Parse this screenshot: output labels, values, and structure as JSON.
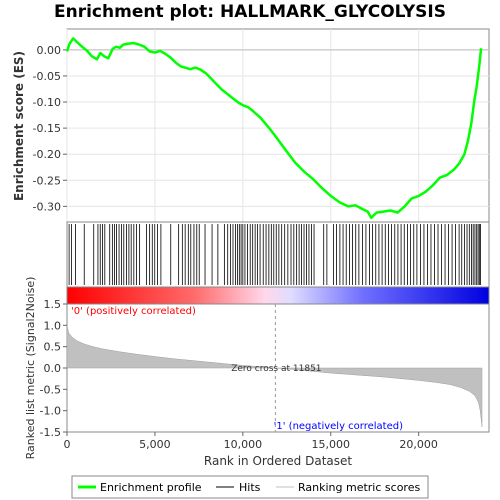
{
  "chart_data": {
    "type": "line",
    "title": "Enrichment plot: HALLMARK_GLYCOLYSIS",
    "xlabel": "Rank in Ordered Dataset",
    "xlim": [
      0,
      24000
    ],
    "x_ticks": [
      0,
      5000,
      10000,
      15000,
      20000
    ],
    "x_tick_labels": [
      "0",
      "5,000",
      "10,000",
      "15,000",
      "20,000"
    ],
    "es_panel": {
      "ylabel": "Enrichment score (ES)",
      "ylim": [
        -0.33,
        0.04
      ],
      "y_ticks": [
        0.0,
        -0.05,
        -0.1,
        -0.15,
        -0.2,
        -0.25,
        -0.3
      ],
      "y_tick_labels": [
        "0.00",
        "-0.05",
        "-0.10",
        "-0.15",
        "-0.20",
        "-0.25",
        "-0.30"
      ],
      "grid": true,
      "series": [
        {
          "name": "Enrichment profile",
          "color": "#00ff00",
          "x": [
            0,
            150,
            350,
            600,
            900,
            1150,
            1400,
            1700,
            1900,
            2100,
            2350,
            2600,
            2800,
            3000,
            3200,
            3500,
            3800,
            4100,
            4400,
            4700,
            5000,
            5300,
            5600,
            5900,
            6200,
            6500,
            6800,
            7000,
            7300,
            7600,
            7900,
            8200,
            8500,
            8800,
            9100,
            9400,
            9700,
            10000,
            10300,
            10600,
            11000,
            11500,
            12000,
            12500,
            13000,
            13500,
            14000,
            14500,
            15000,
            15500,
            16000,
            16400,
            16800,
            17100,
            17300,
            17600,
            18000,
            18400,
            18800,
            19200,
            19600,
            20000,
            20400,
            20800,
            21200,
            21600,
            22000,
            22300,
            22600,
            22800,
            23000,
            23150,
            23300,
            23450,
            23550
          ],
          "y": [
            -0.003,
            0.012,
            0.022,
            0.014,
            0.005,
            -0.002,
            -0.012,
            -0.018,
            -0.006,
            -0.012,
            -0.016,
            0.002,
            0.006,
            0.004,
            0.01,
            0.012,
            0.013,
            0.01,
            0.006,
            -0.003,
            -0.005,
            -0.002,
            -0.008,
            -0.015,
            -0.025,
            -0.032,
            -0.035,
            -0.037,
            -0.034,
            -0.038,
            -0.045,
            -0.055,
            -0.066,
            -0.076,
            -0.084,
            -0.092,
            -0.1,
            -0.106,
            -0.11,
            -0.118,
            -0.13,
            -0.15,
            -0.172,
            -0.195,
            -0.217,
            -0.234,
            -0.248,
            -0.265,
            -0.28,
            -0.292,
            -0.3,
            -0.298,
            -0.305,
            -0.31,
            -0.322,
            -0.312,
            -0.31,
            -0.308,
            -0.312,
            -0.3,
            -0.285,
            -0.28,
            -0.272,
            -0.26,
            -0.245,
            -0.24,
            -0.23,
            -0.218,
            -0.2,
            -0.175,
            -0.14,
            -0.1,
            -0.07,
            -0.03,
            0.003
          ]
        }
      ]
    },
    "hits_panel": {
      "legend_label": "Hits",
      "hit_ranks": [
        120,
        260,
        480,
        980,
        1520,
        1760,
        1890,
        2020,
        2150,
        2430,
        2580,
        2700,
        2820,
        2960,
        3100,
        3230,
        3380,
        3520,
        3650,
        3800,
        3950,
        4130,
        4520,
        4700,
        4850,
        4990,
        5150,
        5340,
        5900,
        6350,
        6560,
        6720,
        6900,
        7040,
        7220,
        7380,
        7520,
        7850,
        8250,
        8580,
        8950,
        9140,
        9300,
        9440,
        9580,
        9700,
        9800,
        9900,
        10000,
        10120,
        10260,
        10420,
        10560,
        10700,
        10830,
        10980,
        11160,
        11320,
        11480,
        11620,
        11760,
        11900,
        12050,
        12210,
        12380,
        12560,
        12740,
        12900,
        13060,
        13200,
        13340,
        13480,
        13620,
        13760,
        13900,
        14050,
        14600,
        14780,
        15150,
        15330,
        15520,
        15700,
        15880,
        16060,
        16240,
        16420,
        16600,
        16800,
        17000,
        17200,
        17380,
        17560,
        17740,
        17920,
        18100,
        18280,
        18460,
        18640,
        18820,
        19000,
        19180,
        19360,
        19540,
        19720,
        19900,
        20100,
        20300,
        20500,
        20700,
        20900,
        21100,
        21300,
        21500,
        21700,
        21900,
        22100,
        22300,
        22450,
        22600,
        22750,
        22880,
        23000,
        23100,
        23200,
        23300,
        23380,
        23450,
        23520
      ]
    },
    "ranking_panel": {
      "ylabel": "Ranked list metric (Signal2Noise)",
      "legend_label": "Ranking metric scores",
      "ylim": [
        -1.5,
        1.5
      ],
      "y_ticks": [
        1.5,
        1.0,
        0.5,
        0.0,
        -0.5,
        -1.0,
        -1.5
      ],
      "y_tick_labels": [
        "1.5",
        "1.0",
        "0.5",
        "0.0",
        "-0.5",
        "-1.0",
        "-1.5"
      ],
      "x": [
        0,
        100,
        300,
        600,
        1000,
        1500,
        2000,
        3000,
        4000,
        5000,
        6000,
        7000,
        8000,
        9000,
        10000,
        11000,
        11851,
        13000,
        14000,
        15000,
        16000,
        17000,
        18000,
        19000,
        20000,
        21000,
        21800,
        22400,
        22900,
        23200,
        23400,
        23500,
        23600
      ],
      "values": [
        1.0,
        0.82,
        0.72,
        0.63,
        0.56,
        0.5,
        0.45,
        0.38,
        0.32,
        0.27,
        0.22,
        0.18,
        0.14,
        0.1,
        0.06,
        0.03,
        0.0,
        -0.04,
        -0.08,
        -0.12,
        -0.15,
        -0.18,
        -0.21,
        -0.25,
        -0.29,
        -0.34,
        -0.39,
        -0.46,
        -0.55,
        -0.65,
        -0.8,
        -1.0,
        -1.38
      ],
      "annotations": {
        "positive": "'0' (positively correlated)",
        "negative": "'1' (negatively correlated)",
        "zero_cross": "Zero cross at 11851",
        "zero_cross_rank": 11851
      }
    },
    "legend": {
      "placement": "bottom",
      "items": [
        "Enrichment profile",
        "Hits",
        "Ranking metric scores"
      ]
    },
    "colors": {
      "profile": "#00ff00",
      "hits": "#000000",
      "metric_fill": "#c0c0c0",
      "positive_label": "#ff0000",
      "negative_label": "#0000ff",
      "bar_positive": "#ff0000",
      "bar_negative": "#0000ff"
    }
  }
}
